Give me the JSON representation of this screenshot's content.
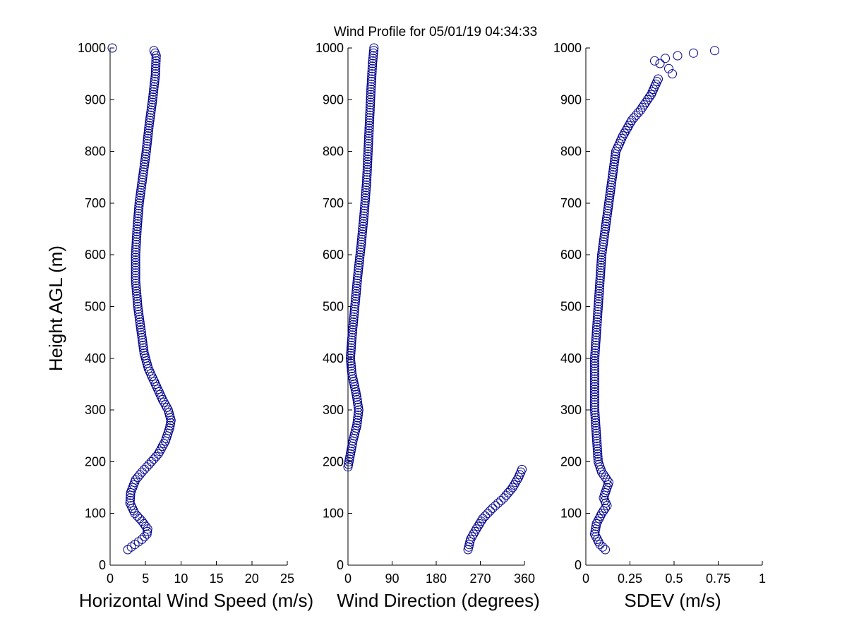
{
  "title": "Wind Profile for  05/01/19 04:34:33",
  "colors": {
    "marker": "#00008b",
    "axes": "#000000",
    "background": "#ffffff"
  },
  "chart_data": [
    {
      "type": "scatter",
      "id": "speed",
      "xlabel": "Horizontal Wind Speed (m/s)",
      "ylabel": "Height AGL (m)",
      "xlim": [
        0,
        25
      ],
      "ylim": [
        0,
        1000
      ],
      "xticks": [
        0,
        5,
        10,
        15,
        20,
        25
      ],
      "xtick_labels": [
        "0",
        "5",
        "10",
        "15",
        "20",
        "25"
      ],
      "yticks": [
        0,
        100,
        200,
        300,
        400,
        500,
        600,
        700,
        800,
        900,
        1000
      ],
      "ytick_labels": [
        "0",
        "100",
        "200",
        "300",
        "400",
        "500",
        "600",
        "700",
        "800",
        "900",
        "1000"
      ],
      "anchors": [
        [
          2.5,
          30
        ],
        [
          3.5,
          40
        ],
        [
          4.5,
          50
        ],
        [
          5.2,
          60
        ],
        [
          5.3,
          70
        ],
        [
          4.5,
          85
        ],
        [
          3.5,
          100
        ],
        [
          2.8,
          120
        ],
        [
          2.9,
          140
        ],
        [
          3.6,
          165
        ],
        [
          4.5,
          180
        ],
        [
          5.5,
          195
        ],
        [
          6.8,
          215
        ],
        [
          7.8,
          240
        ],
        [
          8.4,
          265
        ],
        [
          8.6,
          280
        ],
        [
          8.2,
          300
        ],
        [
          7.4,
          320
        ],
        [
          6.4,
          350
        ],
        [
          5.4,
          380
        ],
        [
          4.8,
          410
        ],
        [
          4.4,
          450
        ],
        [
          3.9,
          500
        ],
        [
          3.6,
          550
        ],
        [
          3.6,
          600
        ],
        [
          3.8,
          650
        ],
        [
          4.1,
          700
        ],
        [
          4.6,
          750
        ],
        [
          5.1,
          800
        ],
        [
          5.5,
          850
        ],
        [
          6.0,
          900
        ],
        [
          6.4,
          950
        ],
        [
          6.5,
          985
        ],
        [
          6.2,
          995
        ]
      ],
      "extra_points": [
        [
          0.3,
          1000
        ]
      ],
      "y_step": 5
    },
    {
      "type": "scatter",
      "id": "direction",
      "xlabel": "Wind Direction (degrees)",
      "xlim": [
        0,
        360
      ],
      "ylim": [
        0,
        1000
      ],
      "xticks": [
        0,
        90,
        180,
        270,
        360
      ],
      "xtick_labels": [
        "0",
        "90",
        "180",
        "270",
        "360"
      ],
      "yticks": [
        0,
        100,
        200,
        300,
        400,
        500,
        600,
        700,
        800,
        900,
        1000
      ],
      "ytick_labels": [
        "0",
        "100",
        "200",
        "300",
        "400",
        "500",
        "600",
        "700",
        "800",
        "900",
        "1000"
      ],
      "segments": [
        {
          "y_step": 5,
          "anchors": [
            [
              245,
              30
            ],
            [
              250,
              50
            ],
            [
              262,
              70
            ],
            [
              275,
              90
            ],
            [
              295,
              110
            ],
            [
              318,
              130
            ],
            [
              336,
              150
            ],
            [
              348,
              170
            ],
            [
              355,
              185
            ]
          ]
        },
        {
          "y_step": 5,
          "anchors": [
            [
              0,
              190
            ],
            [
              4,
              210
            ],
            [
              10,
              240
            ],
            [
              18,
              270
            ],
            [
              22,
              300
            ],
            [
              17,
              330
            ],
            [
              8,
              370
            ],
            [
              5,
              400
            ],
            [
              8,
              440
            ],
            [
              14,
              500
            ],
            [
              20,
              560
            ],
            [
              27,
              620
            ],
            [
              33,
              680
            ],
            [
              38,
              740
            ],
            [
              41,
              800
            ],
            [
              44,
              860
            ],
            [
              47,
              920
            ],
            [
              50,
              970
            ],
            [
              53,
              1000
            ]
          ]
        }
      ]
    },
    {
      "type": "scatter",
      "id": "sdev",
      "xlabel": "SDEV  (m/s)",
      "xlim": [
        0,
        1
      ],
      "ylim": [
        0,
        1000
      ],
      "xticks": [
        0,
        0.25,
        0.5,
        0.75,
        1
      ],
      "xtick_labels": [
        "0",
        "0.25",
        "0.5",
        "0.75",
        "1"
      ],
      "yticks": [
        0,
        100,
        200,
        300,
        400,
        500,
        600,
        700,
        800,
        900,
        1000
      ],
      "ytick_labels": [
        "0",
        "100",
        "200",
        "300",
        "400",
        "500",
        "600",
        "700",
        "800",
        "900",
        "1000"
      ],
      "anchors": [
        [
          0.11,
          30
        ],
        [
          0.08,
          40
        ],
        [
          0.05,
          60
        ],
        [
          0.06,
          80
        ],
        [
          0.09,
          100
        ],
        [
          0.12,
          115
        ],
        [
          0.1,
          130
        ],
        [
          0.13,
          160
        ],
        [
          0.09,
          180
        ],
        [
          0.07,
          200
        ],
        [
          0.06,
          250
        ],
        [
          0.05,
          300
        ],
        [
          0.05,
          350
        ],
        [
          0.05,
          400
        ],
        [
          0.06,
          450
        ],
        [
          0.07,
          500
        ],
        [
          0.08,
          550
        ],
        [
          0.09,
          600
        ],
        [
          0.11,
          650
        ],
        [
          0.13,
          700
        ],
        [
          0.15,
          750
        ],
        [
          0.17,
          800
        ],
        [
          0.21,
          830
        ],
        [
          0.26,
          860
        ],
        [
          0.31,
          880
        ],
        [
          0.37,
          910
        ],
        [
          0.41,
          940
        ]
      ],
      "y_step": 5,
      "extra_points": [
        [
          0.49,
          950
        ],
        [
          0.47,
          960
        ],
        [
          0.42,
          970
        ],
        [
          0.39,
          975
        ],
        [
          0.45,
          980
        ],
        [
          0.52,
          985
        ],
        [
          0.61,
          990
        ],
        [
          0.73,
          995
        ]
      ]
    }
  ]
}
